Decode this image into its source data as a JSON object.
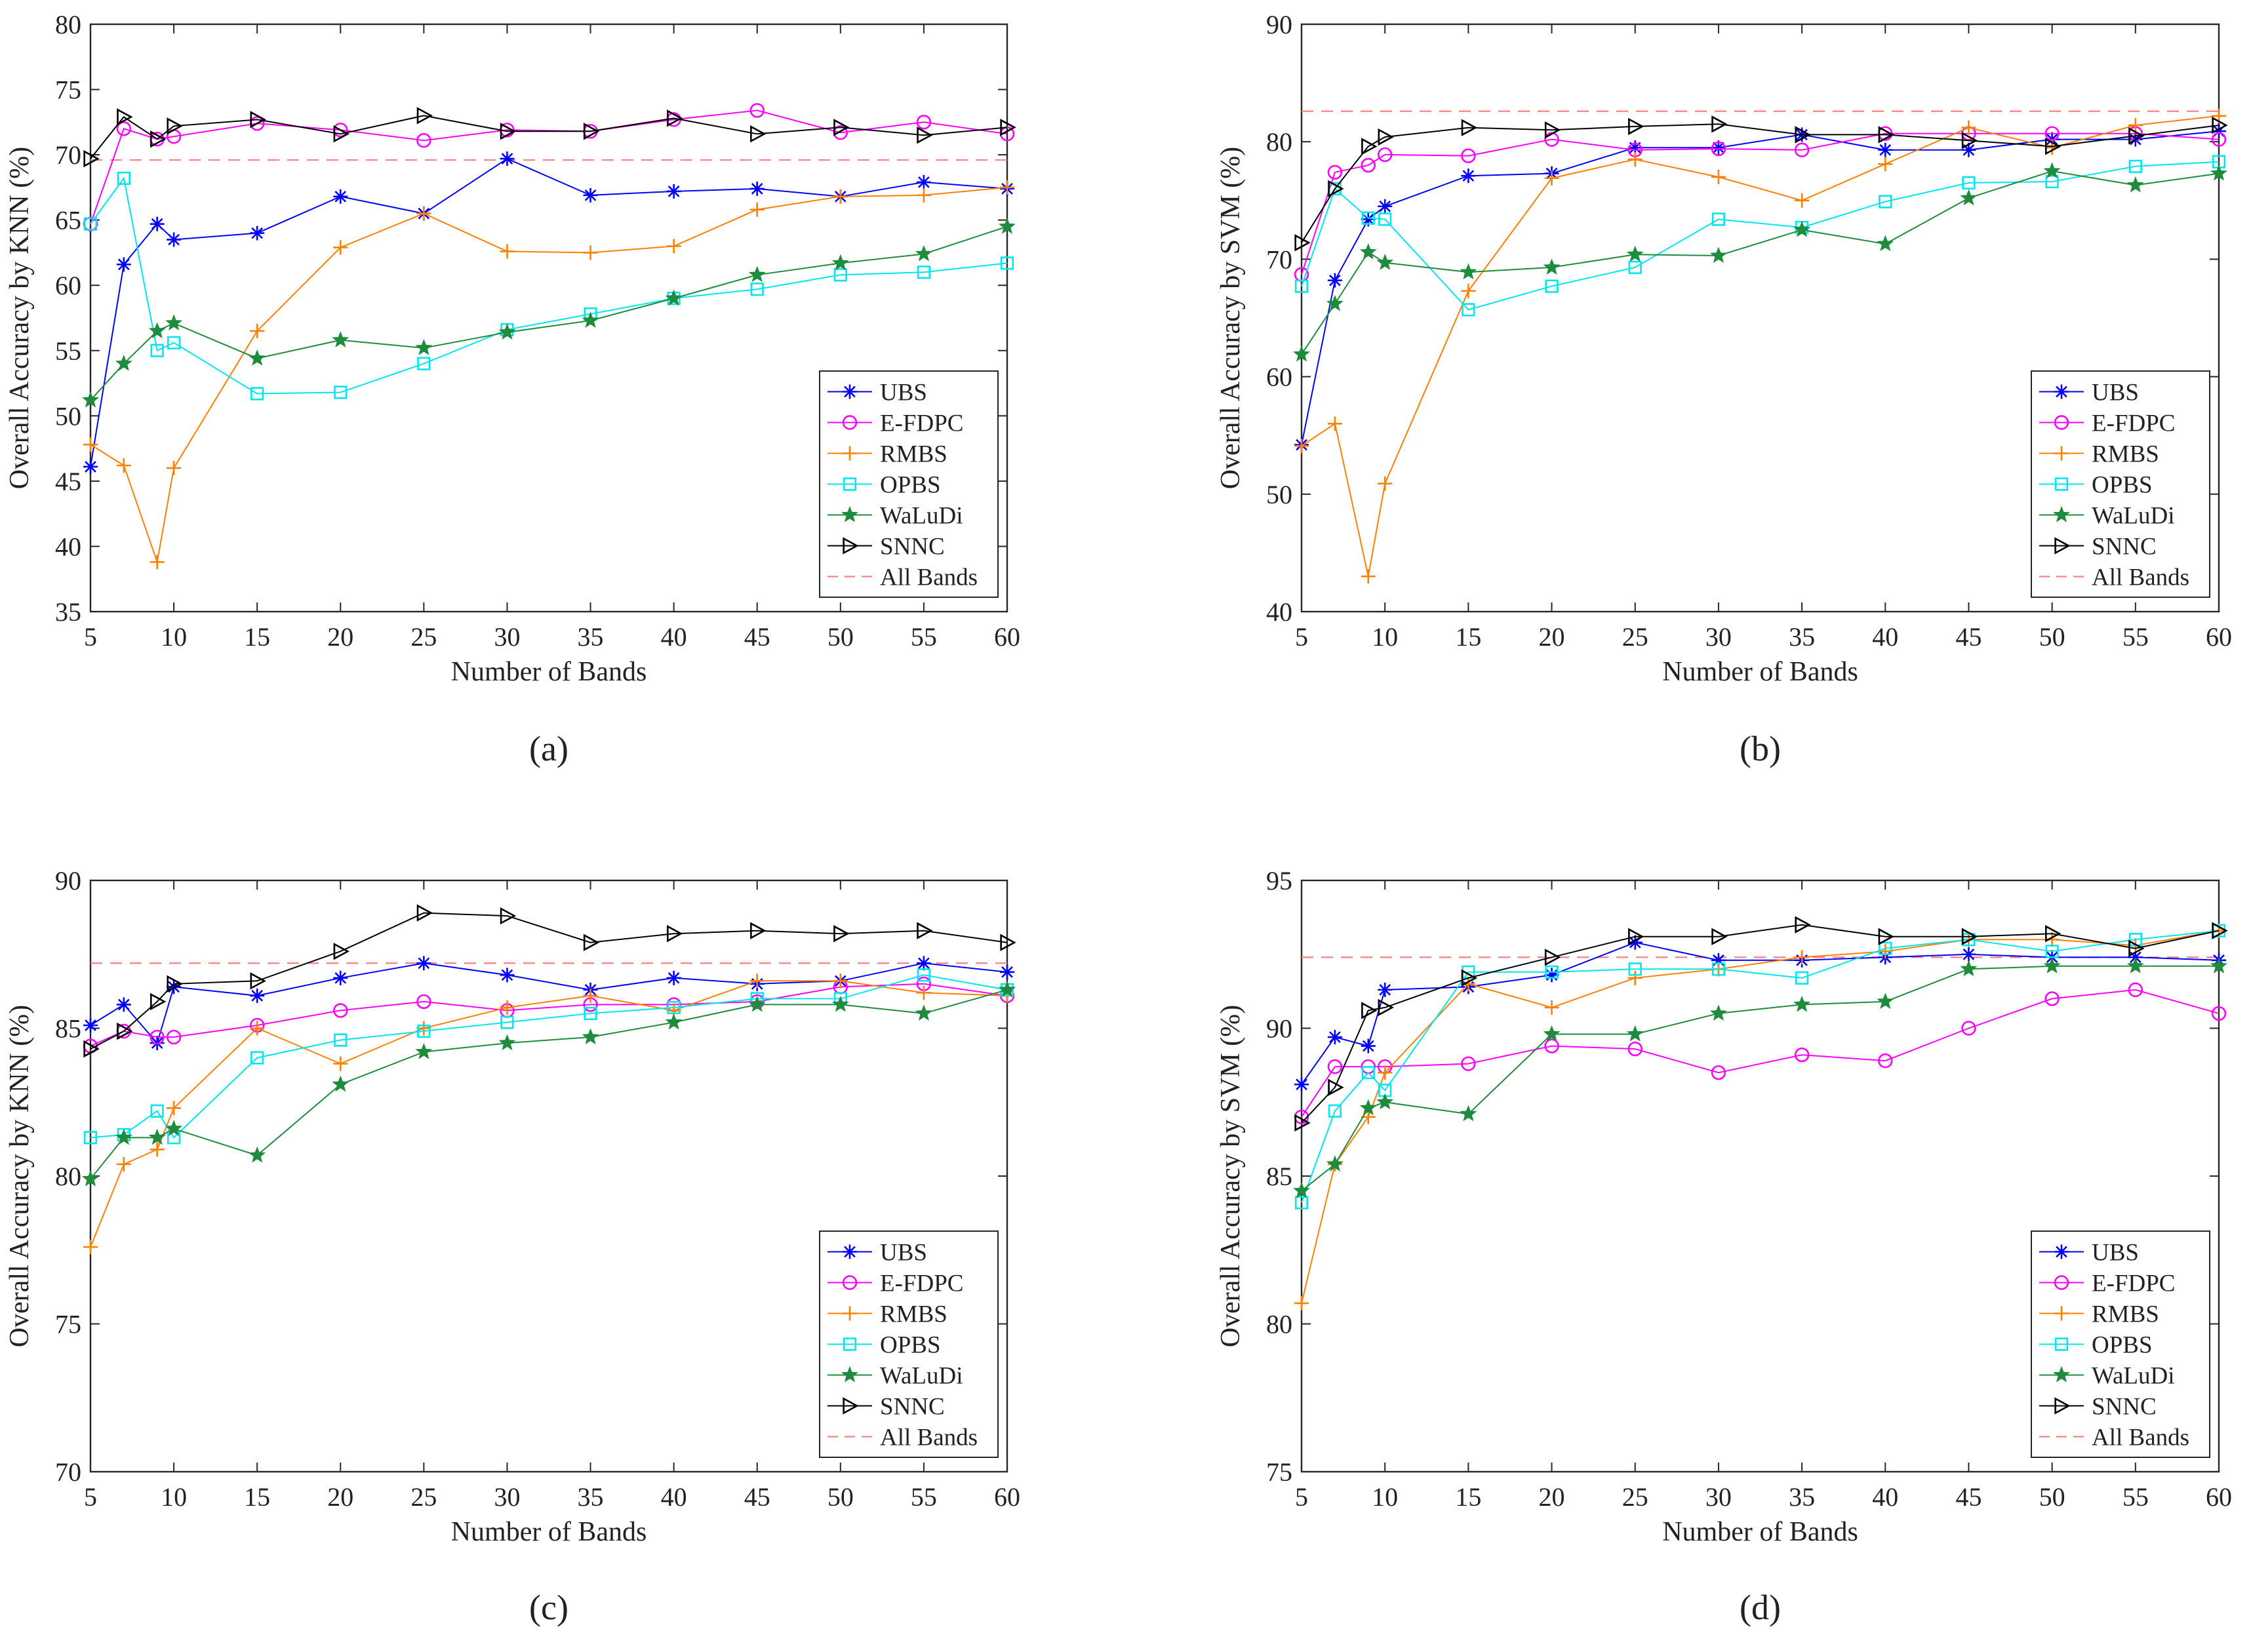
{
  "figure": {
    "legend_entries": [
      "UBS",
      "E-FDPC",
      "RMBS",
      "OPBS",
      "WaLuDi",
      "SNNC",
      "All Bands"
    ],
    "series_colors": {
      "UBS": "#0000ff",
      "E-FDPC": "#ff00ff",
      "RMBS": "#ff8000",
      "OPBS": "#00e5ee",
      "WaLuDi": "#1e8c3c",
      "SNNC": "#000000",
      "All Bands": "#ff8080"
    },
    "series_markers": {
      "UBS": "asterisk",
      "E-FDPC": "circle",
      "RMBS": "plus",
      "OPBS": "square",
      "WaLuDi": "pentagram",
      "SNNC": "triangle-right",
      "All Bands": "none"
    }
  },
  "chart_data": [
    {
      "type": "line",
      "panel_label": "(a)",
      "xlabel": "Number of Bands",
      "ylabel": "Overall Accuracy by KNN (%)",
      "xlim": [
        5,
        60
      ],
      "ylim": [
        35,
        80
      ],
      "xticks": [
        5,
        10,
        15,
        20,
        25,
        30,
        35,
        40,
        45,
        50,
        55,
        60
      ],
      "yticks": [
        35,
        40,
        45,
        50,
        55,
        60,
        65,
        70,
        75,
        80
      ],
      "x": [
        5,
        7,
        9,
        10,
        15,
        20,
        25,
        30,
        35,
        40,
        45,
        50,
        55,
        60
      ],
      "legend_position": "bottom-right",
      "series": [
        {
          "name": "UBS",
          "values": [
            46.1,
            61.6,
            64.7,
            63.5,
            64.0,
            66.8,
            65.5,
            69.7,
            66.9,
            67.2,
            67.4,
            66.8,
            67.9,
            67.4
          ]
        },
        {
          "name": "E-FDPC",
          "values": [
            64.7,
            72.0,
            71.2,
            71.4,
            72.4,
            71.9,
            71.1,
            71.9,
            71.8,
            72.7,
            73.4,
            71.7,
            72.5,
            71.6
          ]
        },
        {
          "name": "RMBS",
          "values": [
            47.8,
            46.2,
            38.8,
            46.0,
            56.5,
            62.9,
            65.5,
            62.6,
            62.5,
            63.0,
            65.8,
            66.8,
            66.9,
            67.5
          ]
        },
        {
          "name": "OPBS",
          "values": [
            64.7,
            68.2,
            55.0,
            55.6,
            51.7,
            51.8,
            54.0,
            56.6,
            57.8,
            59.0,
            59.7,
            60.8,
            61.0,
            61.7
          ]
        },
        {
          "name": "WaLuDi",
          "values": [
            51.2,
            54.0,
            56.5,
            57.1,
            54.4,
            55.8,
            55.2,
            56.4,
            57.3,
            59.0,
            60.8,
            61.7,
            62.4,
            64.5
          ]
        },
        {
          "name": "SNNC",
          "values": [
            69.7,
            72.9,
            71.2,
            72.2,
            72.7,
            71.6,
            73.0,
            71.8,
            71.8,
            72.8,
            71.6,
            72.1,
            71.5,
            72.1
          ]
        }
      ],
      "reference_line": {
        "name": "All Bands",
        "value": 69.6
      }
    },
    {
      "type": "line",
      "panel_label": "(b)",
      "xlabel": "Number of Bands",
      "ylabel": "Overall Accuracy by SVM (%)",
      "xlim": [
        5,
        60
      ],
      "ylim": [
        40,
        90
      ],
      "xticks": [
        5,
        10,
        15,
        20,
        25,
        30,
        35,
        40,
        45,
        50,
        55,
        60
      ],
      "yticks": [
        40,
        50,
        60,
        70,
        80,
        90
      ],
      "x": [
        5,
        7,
        9,
        10,
        15,
        20,
        25,
        30,
        35,
        40,
        45,
        50,
        55,
        60
      ],
      "legend_position": "bottom-right",
      "series": [
        {
          "name": "UBS",
          "values": [
            54.2,
            68.2,
            73.4,
            74.5,
            77.1,
            77.3,
            79.5,
            79.5,
            80.6,
            79.3,
            79.3,
            80.2,
            80.2,
            80.9
          ]
        },
        {
          "name": "E-FDPC",
          "values": [
            68.7,
            77.4,
            78.0,
            78.9,
            78.8,
            80.2,
            79.3,
            79.4,
            79.3,
            80.7,
            80.7,
            80.7,
            80.7,
            80.2
          ]
        },
        {
          "name": "RMBS",
          "values": [
            54.1,
            56.0,
            43.0,
            50.9,
            67.3,
            76.9,
            78.5,
            77.0,
            75.0,
            78.1,
            81.2,
            79.5,
            81.4,
            82.2
          ]
        },
        {
          "name": "OPBS",
          "values": [
            67.7,
            76.0,
            73.5,
            73.4,
            65.7,
            67.7,
            69.3,
            73.4,
            72.7,
            74.9,
            76.5,
            76.6,
            77.9,
            78.3
          ]
        },
        {
          "name": "WaLuDi",
          "values": [
            61.9,
            66.2,
            70.6,
            69.7,
            68.9,
            69.3,
            70.4,
            70.3,
            72.5,
            71.3,
            75.2,
            77.5,
            76.3,
            77.3
          ]
        },
        {
          "name": "SNNC",
          "values": [
            71.4,
            76.0,
            79.6,
            80.4,
            81.2,
            81.0,
            81.3,
            81.5,
            80.6,
            80.6,
            80.1,
            79.6,
            80.5,
            81.4
          ]
        }
      ],
      "reference_line": {
        "name": "All Bands",
        "value": 82.6
      }
    },
    {
      "type": "line",
      "panel_label": "(c)",
      "xlabel": "Number of Bands",
      "ylabel": "Overall Accuracy by KNN (%)",
      "xlim": [
        5,
        60
      ],
      "ylim": [
        70,
        90
      ],
      "xticks": [
        5,
        10,
        15,
        20,
        25,
        30,
        35,
        40,
        45,
        50,
        55,
        60
      ],
      "yticks": [
        70,
        75,
        80,
        85,
        90
      ],
      "x": [
        5,
        7,
        9,
        10,
        15,
        20,
        25,
        30,
        35,
        40,
        45,
        50,
        55,
        60
      ],
      "legend_position": "bottom-right",
      "series": [
        {
          "name": "UBS",
          "values": [
            85.1,
            85.8,
            84.5,
            86.4,
            86.1,
            86.7,
            87.2,
            86.8,
            86.3,
            86.7,
            86.5,
            86.6,
            87.2,
            86.9
          ]
        },
        {
          "name": "E-FDPC",
          "values": [
            84.4,
            84.9,
            84.7,
            84.7,
            85.1,
            85.6,
            85.9,
            85.6,
            85.8,
            85.8,
            85.9,
            86.4,
            86.5,
            86.1
          ]
        },
        {
          "name": "RMBS",
          "values": [
            77.6,
            80.4,
            80.9,
            82.3,
            85.0,
            83.8,
            85.0,
            85.7,
            86.1,
            85.6,
            86.6,
            86.6,
            86.2,
            86.1
          ]
        },
        {
          "name": "OPBS",
          "values": [
            81.3,
            81.4,
            82.2,
            81.3,
            84.0,
            84.6,
            84.9,
            85.2,
            85.5,
            85.7,
            86.0,
            86.0,
            86.8,
            86.3
          ]
        },
        {
          "name": "WaLuDi",
          "values": [
            79.9,
            81.3,
            81.3,
            81.6,
            80.7,
            83.1,
            84.2,
            84.5,
            84.7,
            85.2,
            85.8,
            85.8,
            85.5,
            86.3
          ]
        },
        {
          "name": "SNNC",
          "values": [
            84.3,
            84.9,
            85.9,
            86.5,
            86.6,
            87.6,
            88.9,
            88.8,
            87.9,
            88.2,
            88.3,
            88.2,
            88.3,
            87.9
          ]
        }
      ],
      "reference_line": {
        "name": "All Bands",
        "value": 87.2
      }
    },
    {
      "type": "line",
      "panel_label": "(d)",
      "xlabel": "Number of Bands",
      "ylabel": "Overall Accuracy by SVM (%)",
      "xlim": [
        5,
        60
      ],
      "ylim": [
        75,
        95
      ],
      "xticks": [
        5,
        10,
        15,
        20,
        25,
        30,
        35,
        40,
        45,
        50,
        55,
        60
      ],
      "yticks": [
        75,
        80,
        85,
        90,
        95
      ],
      "x": [
        5,
        7,
        9,
        10,
        15,
        20,
        25,
        30,
        35,
        40,
        45,
        50,
        55,
        60
      ],
      "legend_position": "bottom-right",
      "series": [
        {
          "name": "UBS",
          "values": [
            88.1,
            89.7,
            89.4,
            91.3,
            91.4,
            91.8,
            92.9,
            92.3,
            92.3,
            92.4,
            92.5,
            92.4,
            92.4,
            92.3
          ]
        },
        {
          "name": "E-FDPC",
          "values": [
            87.0,
            88.7,
            88.7,
            88.7,
            88.8,
            89.4,
            89.3,
            88.5,
            89.1,
            88.9,
            90.0,
            91.0,
            91.3,
            90.5
          ]
        },
        {
          "name": "RMBS",
          "values": [
            80.7,
            85.4,
            87.0,
            88.5,
            91.5,
            90.7,
            91.7,
            92.0,
            92.4,
            92.6,
            93.0,
            93.0,
            92.8,
            93.3
          ]
        },
        {
          "name": "OPBS",
          "values": [
            84.1,
            87.2,
            88.5,
            87.9,
            91.9,
            91.9,
            92.0,
            92.0,
            91.7,
            92.7,
            93.0,
            92.6,
            93.0,
            93.3
          ]
        },
        {
          "name": "WaLuDi",
          "values": [
            84.5,
            85.4,
            87.3,
            87.5,
            87.1,
            89.8,
            89.8,
            90.5,
            90.8,
            90.9,
            92.0,
            92.1,
            92.1,
            92.1
          ]
        },
        {
          "name": "SNNC",
          "values": [
            86.8,
            88.0,
            90.6,
            90.7,
            91.7,
            92.4,
            93.1,
            93.1,
            93.5,
            93.1,
            93.1,
            93.2,
            92.7,
            93.3
          ]
        }
      ],
      "reference_line": {
        "name": "All Bands",
        "value": 92.4
      }
    }
  ]
}
